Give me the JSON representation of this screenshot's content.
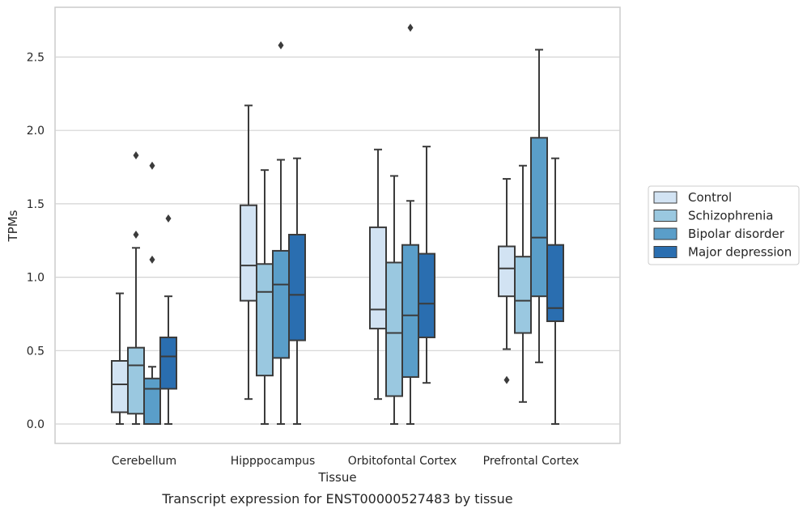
{
  "caption": "Transcript expression for ENST00000527483 by tissue",
  "chart_data": {
    "type": "boxplot",
    "xlabel": "Tissue",
    "ylabel": "TPMs",
    "ylim": [
      -0.13,
      2.85
    ],
    "yticks": [
      0.0,
      0.5,
      1.0,
      1.5,
      2.0,
      2.5
    ],
    "ytick_labels": [
      "0.0",
      "0.5",
      "1.0",
      "1.5",
      "2.0",
      "2.5"
    ],
    "grid": "horizontal",
    "legend_position": "right",
    "categories": [
      "Cerebellum",
      "Hipppocampus",
      "Orbitofontal Cortex",
      "Prefrontal Cortex"
    ],
    "series": [
      {
        "name": "Control",
        "color": "#d2e3f3",
        "boxes": [
          {
            "whislo": 0.0,
            "q1": 0.08,
            "med": 0.27,
            "q3": 0.43,
            "whishi": 0.89,
            "fliers": []
          },
          {
            "whislo": 0.17,
            "q1": 0.84,
            "med": 1.08,
            "q3": 1.49,
            "whishi": 2.17,
            "fliers": []
          },
          {
            "whislo": 0.17,
            "q1": 0.65,
            "med": 0.78,
            "q3": 1.34,
            "whishi": 1.87,
            "fliers": []
          },
          {
            "whislo": 0.51,
            "q1": 0.87,
            "med": 1.06,
            "q3": 1.21,
            "whishi": 1.67,
            "fliers": [
              0.3
            ]
          }
        ]
      },
      {
        "name": "Schizophrenia",
        "color": "#9ac8e0",
        "boxes": [
          {
            "whislo": 0.0,
            "q1": 0.07,
            "med": 0.4,
            "q3": 0.52,
            "whishi": 1.2,
            "fliers": [
              1.29,
              1.83
            ]
          },
          {
            "whislo": 0.0,
            "q1": 0.33,
            "med": 0.9,
            "q3": 1.09,
            "whishi": 1.73,
            "fliers": []
          },
          {
            "whislo": 0.0,
            "q1": 0.19,
            "med": 0.62,
            "q3": 1.1,
            "whishi": 1.69,
            "fliers": []
          },
          {
            "whislo": 0.15,
            "q1": 0.62,
            "med": 0.84,
            "q3": 1.14,
            "whishi": 1.76,
            "fliers": []
          }
        ]
      },
      {
        "name": "Bipolar disorder",
        "color": "#5a9ec9",
        "boxes": [
          {
            "whislo": 0.0,
            "q1": 0.0,
            "med": 0.24,
            "q3": 0.31,
            "whishi": 0.39,
            "fliers": [
              1.12,
              1.76
            ]
          },
          {
            "whislo": 0.0,
            "q1": 0.45,
            "med": 0.95,
            "q3": 1.18,
            "whishi": 1.8,
            "fliers": [
              2.58
            ]
          },
          {
            "whislo": 0.0,
            "q1": 0.32,
            "med": 0.74,
            "q3": 1.22,
            "whishi": 1.52,
            "fliers": [
              2.7
            ]
          },
          {
            "whislo": 0.42,
            "q1": 0.87,
            "med": 1.27,
            "q3": 1.95,
            "whishi": 2.55,
            "fliers": []
          }
        ]
      },
      {
        "name": "Major depression",
        "color": "#2a6eb0",
        "boxes": [
          {
            "whislo": 0.0,
            "q1": 0.24,
            "med": 0.46,
            "q3": 0.59,
            "whishi": 0.87,
            "fliers": [
              1.4
            ]
          },
          {
            "whislo": 0.0,
            "q1": 0.57,
            "med": 0.88,
            "q3": 1.29,
            "whishi": 1.81,
            "fliers": []
          },
          {
            "whislo": 0.28,
            "q1": 0.59,
            "med": 0.82,
            "q3": 1.16,
            "whishi": 1.89,
            "fliers": []
          },
          {
            "whislo": 0.0,
            "q1": 0.7,
            "med": 0.79,
            "q3": 1.22,
            "whishi": 1.81,
            "fliers": []
          }
        ]
      }
    ]
  }
}
